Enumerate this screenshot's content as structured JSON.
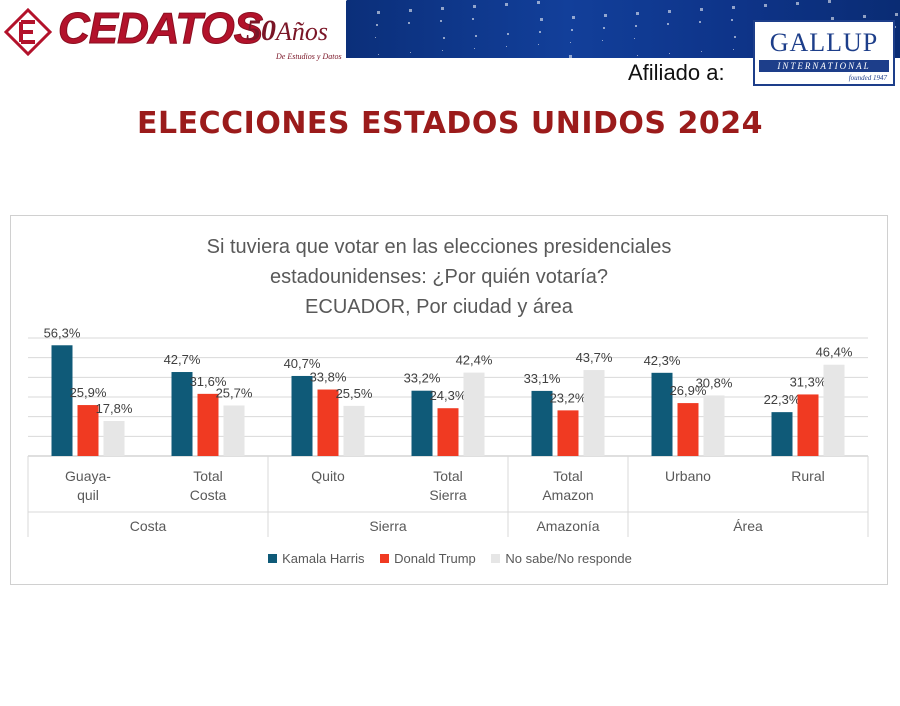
{
  "header": {
    "brand": "CEDATOS",
    "anniversary_number": "50",
    "anniversary_word": "Años",
    "anniversary_sub": "De Estudios y Datos",
    "affiliate_label": "Afiliado a:",
    "partner_name": "GALLUP",
    "partner_sub": "INTERNATIONAL",
    "partner_founded": "founded 1947"
  },
  "page_title": "ELECCIONES ESTADOS UNIDOS 2024",
  "chart_data": {
    "type": "bar",
    "title_lines": [
      "Si tuviera que votar en las elecciones presidenciales",
      "estadounidenses: ¿Por quién votaría?",
      "ECUADOR, Por ciudad y área"
    ],
    "categories": [
      [
        "Guaya-",
        "quil"
      ],
      [
        "Total",
        "Costa"
      ],
      [
        "Quito"
      ],
      [
        "Total",
        "Sierra"
      ],
      [
        "Total",
        "Amazon"
      ],
      [
        "Urbano"
      ],
      [
        "Rural"
      ]
    ],
    "groups": [
      {
        "label": "Costa",
        "count": 2
      },
      {
        "label": "Sierra",
        "count": 2
      },
      {
        "label": "Amazonía",
        "count": 1
      },
      {
        "label": "Área",
        "count": 2
      }
    ],
    "series": [
      {
        "name": "Kamala Harris",
        "color": "#0f5a78",
        "values": [
          56.3,
          42.7,
          40.7,
          33.2,
          33.1,
          42.3,
          22.3
        ],
        "labels": [
          "56,3%",
          "42,7%",
          "40,7%",
          "33,2%",
          "33,1%",
          "42,3%",
          "22,3%"
        ]
      },
      {
        "name": "Donald Trump",
        "color": "#f03a22",
        "values": [
          25.9,
          31.6,
          33.8,
          24.3,
          23.2,
          26.9,
          31.3
        ],
        "labels": [
          "25,9%",
          "31,6%",
          "33,8%",
          "24,3%",
          "23,2%",
          "26,9%",
          "31,3%"
        ]
      },
      {
        "name": "No sabe/No responde",
        "color": "#e6e6e6",
        "values": [
          17.8,
          25.7,
          25.5,
          42.4,
          43.7,
          30.8,
          46.4
        ],
        "labels": [
          "17,8%",
          "25,7%",
          "25,5%",
          "42,4%",
          "43,7%",
          "30,8%",
          "46,4%"
        ]
      }
    ],
    "ylim": [
      0,
      60
    ],
    "grid": true,
    "legend_position": "bottom"
  }
}
